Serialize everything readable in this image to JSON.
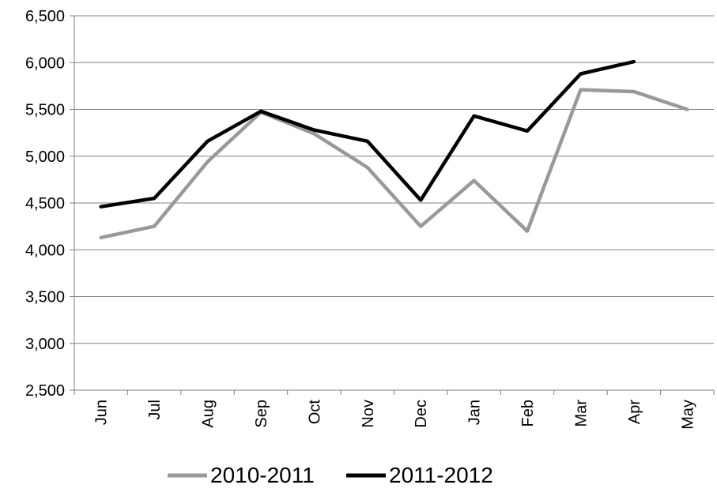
{
  "chart_data": {
    "type": "line",
    "title": "",
    "xlabel": "",
    "ylabel": "",
    "categories": [
      "Jun",
      "Jul",
      "Aug",
      "Sep",
      "Oct",
      "Nov",
      "Dec",
      "Jan",
      "Feb",
      "Mar",
      "Apr",
      "May"
    ],
    "y_ticks": [
      "2,500",
      "3,000",
      "3,500",
      "4,000",
      "4,500",
      "5,000",
      "5,500",
      "6,000",
      "6,500"
    ],
    "ylim": [
      2500,
      6500
    ],
    "grid": true,
    "legend_position": "bottom",
    "series": [
      {
        "name": "2010-2011",
        "color": "#999999",
        "values": [
          4130,
          4250,
          4940,
          5470,
          5240,
          4880,
          4250,
          4740,
          4200,
          5710,
          5690,
          5500
        ]
      },
      {
        "name": "2011-2012",
        "color": "#000000",
        "values": [
          4460,
          4550,
          5160,
          5480,
          5280,
          5160,
          4530,
          5430,
          5270,
          5880,
          6010,
          null
        ]
      }
    ]
  }
}
